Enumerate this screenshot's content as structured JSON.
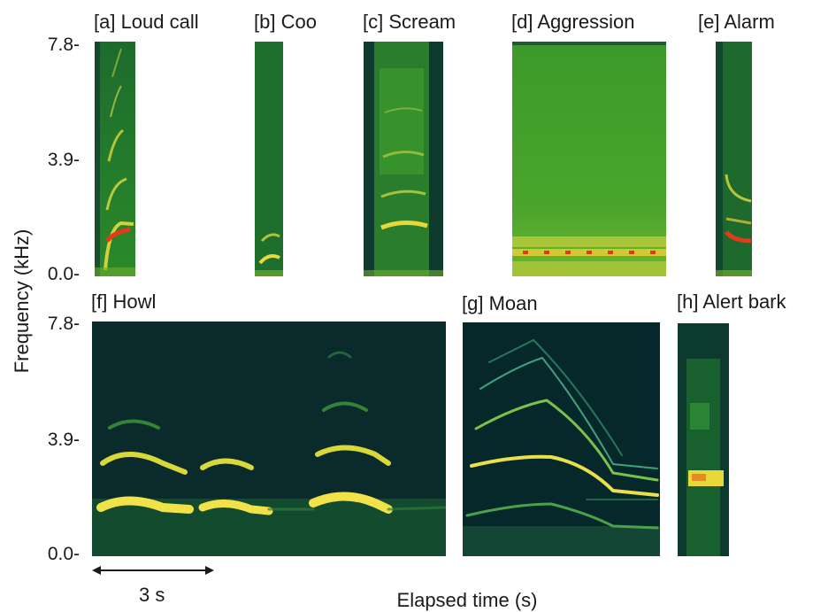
{
  "axis": {
    "ylabel": "Frequency (kHz)",
    "xlabel": "Elapsed time (s)",
    "ticks": [
      "7.8-",
      "3.9-",
      "0.0-"
    ]
  },
  "scale_bar": {
    "label": "3 s"
  },
  "panels": [
    {
      "id": "a",
      "title": "[a] Loud call"
    },
    {
      "id": "b",
      "title": "[b] Coo"
    },
    {
      "id": "c",
      "title": "[c] Scream"
    },
    {
      "id": "d",
      "title": "[d] Aggression"
    },
    {
      "id": "e",
      "title": "[e] Alarm"
    },
    {
      "id": "f",
      "title": "[f] Howl"
    },
    {
      "id": "g",
      "title": "[g] Moan"
    },
    {
      "id": "h",
      "title": "[h] Alert bark"
    }
  ],
  "colors": {
    "background_dark": "#0b2a2a",
    "background_green": "#1f7a2a",
    "harmonic_yellow": "#f2e24a",
    "hot_red": "#e03a1e"
  }
}
